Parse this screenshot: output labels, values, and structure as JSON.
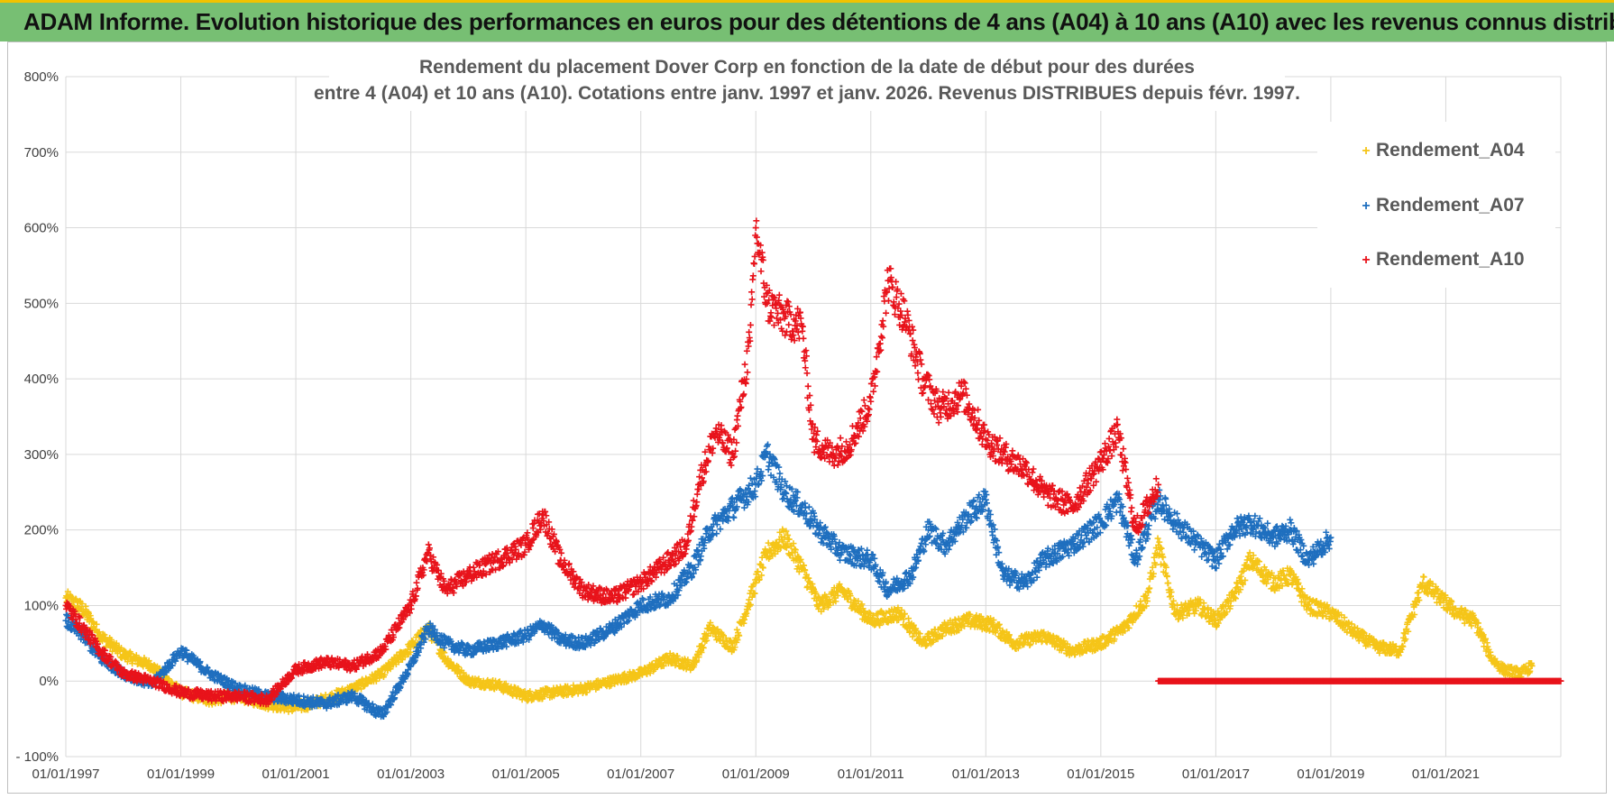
{
  "banner": {
    "title": "ADAM Informe. Evolution historique des performances en euros pour des détentions de 4 ans (A04) à 10 ans (A10) avec les revenus connus distribués"
  },
  "chart_data": {
    "type": "scatter",
    "title_lines": [
      "Rendement du placement Dover Corp en fonction de la date de début pour des durées",
      "entre 4 (A04) et 10 ans (A10). Cotations entre janv. 1997 et janv. 2026. Revenus DISTRIBUES depuis févr. 1997."
    ],
    "xlabel": "",
    "ylabel": "",
    "xlim": [
      1997.0,
      2023.0
    ],
    "ylim": [
      -100,
      800
    ],
    "y_ticks": [
      -100,
      0,
      100,
      200,
      300,
      400,
      500,
      600,
      700,
      800
    ],
    "y_tick_labels": [
      "- 100%",
      "0%",
      "100%",
      "200%",
      "300%",
      "400%",
      "500%",
      "600%",
      "700%",
      "800%"
    ],
    "x_ticks": [
      1997,
      1999,
      2001,
      2003,
      2005,
      2007,
      2009,
      2011,
      2013,
      2015,
      2017,
      2019,
      2021
    ],
    "x_tick_labels": [
      "01/01/1997",
      "01/01/1999",
      "01/01/2001",
      "01/01/2003",
      "01/01/2005",
      "01/01/2007",
      "01/01/2009",
      "01/01/2011",
      "01/01/2013",
      "01/01/2015",
      "01/01/2017",
      "01/01/2019",
      "01/01/2021"
    ],
    "grid": true,
    "legend_position": "top-right",
    "marker": "+",
    "series": [
      {
        "name": "Rendement_A04",
        "color": "#f5c518",
        "x": [
          1997.0,
          1997.3,
          1997.6,
          1998.0,
          1998.5,
          1999.0,
          1999.5,
          2000.0,
          2000.5,
          2001.0,
          2001.5,
          2002.0,
          2002.5,
          2003.0,
          2003.3,
          2003.6,
          2004.0,
          2004.5,
          2005.0,
          2005.5,
          2006.0,
          2006.5,
          2007.0,
          2007.5,
          2007.9,
          2008.2,
          2008.6,
          2009.0,
          2009.2,
          2009.5,
          2009.8,
          2010.1,
          2010.5,
          2011.0,
          2011.5,
          2011.9,
          2012.3,
          2012.7,
          2013.1,
          2013.5,
          2014.0,
          2014.5,
          2015.0,
          2015.4,
          2015.8,
          2016.0,
          2016.3,
          2016.7,
          2017.0,
          2017.3,
          2017.6,
          2018.0,
          2018.3,
          2018.6,
          2019.0,
          2019.4,
          2019.8,
          2020.2,
          2020.6,
          2020.9,
          2021.2,
          2021.5,
          2021.8,
          2022.0,
          2022.3,
          2022.5
        ],
        "values": [
          110,
          95,
          60,
          35,
          20,
          -15,
          -25,
          -20,
          -30,
          -35,
          -25,
          -10,
          10,
          45,
          70,
          30,
          0,
          -5,
          -20,
          -15,
          -10,
          0,
          10,
          30,
          20,
          70,
          45,
          130,
          170,
          190,
          150,
          100,
          120,
          80,
          90,
          50,
          70,
          80,
          75,
          50,
          60,
          40,
          50,
          70,
          110,
          180,
          90,
          100,
          80,
          110,
          160,
          130,
          140,
          100,
          90,
          65,
          45,
          40,
          130,
          110,
          90,
          80,
          30,
          15,
          10,
          20
        ]
      },
      {
        "name": "Rendement_A07",
        "color": "#1f6fbf",
        "x": [
          1997.0,
          1997.3,
          1997.6,
          1998.0,
          1998.5,
          1999.0,
          1999.5,
          2000.0,
          2000.5,
          2001.0,
          2001.5,
          2002.0,
          2002.5,
          2003.0,
          2003.3,
          2003.6,
          2004.0,
          2004.5,
          2005.0,
          2005.3,
          2005.6,
          2006.0,
          2006.5,
          2007.0,
          2007.5,
          2007.9,
          2008.2,
          2008.6,
          2009.0,
          2009.2,
          2009.5,
          2009.8,
          2010.1,
          2010.5,
          2011.0,
          2011.3,
          2011.7,
          2012.0,
          2012.3,
          2012.7,
          2013.0,
          2013.3,
          2013.7,
          2014.0,
          2014.5,
          2015.0,
          2015.3,
          2015.6,
          2016.0,
          2016.3,
          2016.7,
          2017.0,
          2017.3,
          2017.6,
          2018.0,
          2018.3,
          2018.6,
          2019.0
        ],
        "values": [
          80,
          60,
          30,
          10,
          -5,
          40,
          10,
          -10,
          -20,
          -25,
          -30,
          -20,
          -45,
          20,
          70,
          50,
          40,
          50,
          60,
          75,
          55,
          50,
          70,
          100,
          110,
          150,
          200,
          230,
          260,
          300,
          250,
          230,
          200,
          170,
          160,
          120,
          140,
          200,
          180,
          220,
          240,
          140,
          130,
          160,
          180,
          210,
          240,
          160,
          240,
          210,
          180,
          160,
          200,
          210,
          190,
          200,
          160,
          190
        ]
      },
      {
        "name": "Rendement_A10",
        "color": "#e8131b",
        "x": [
          1997.0,
          1997.3,
          1997.6,
          1998.0,
          1998.5,
          1999.0,
          1999.5,
          2000.0,
          2000.5,
          2001.0,
          2001.5,
          2002.0,
          2002.5,
          2003.0,
          2003.3,
          2003.6,
          2004.0,
          2004.5,
          2005.0,
          2005.3,
          2005.6,
          2006.0,
          2006.5,
          2007.0,
          2007.5,
          2007.8,
          2008.0,
          2008.3,
          2008.6,
          2008.9,
          2009.0,
          2009.2,
          2009.5,
          2009.8,
          2010.0,
          2010.3,
          2010.6,
          2011.0,
          2011.3,
          2011.6,
          2011.9,
          2012.2,
          2012.6,
          2013.0,
          2013.3,
          2013.7,
          2014.0,
          2014.5,
          2015.0,
          2015.3,
          2015.6,
          2016.0
        ],
        "values": [
          100,
          70,
          40,
          10,
          0,
          -15,
          -20,
          -20,
          -25,
          15,
          25,
          20,
          40,
          100,
          170,
          120,
          140,
          160,
          180,
          220,
          160,
          120,
          110,
          130,
          160,
          180,
          260,
          330,
          300,
          450,
          600,
          500,
          480,
          470,
          320,
          300,
          310,
          370,
          530,
          480,
          400,
          360,
          380,
          320,
          300,
          280,
          250,
          230,
          290,
          330,
          200,
          260
        ]
      },
      {
        "name": "Rendement_A10_zero",
        "color": "#e8131b",
        "x": [
          2016.0,
          2016.5,
          2017.0,
          2017.5,
          2018.0,
          2018.5,
          2019.0,
          2019.5,
          2020.0,
          2020.5,
          2021.0,
          2021.5,
          2022.0,
          2022.5,
          2023.0
        ],
        "values": [
          0,
          0,
          0,
          0,
          0,
          0,
          0,
          0,
          0,
          0,
          0,
          0,
          0,
          0,
          0
        ]
      }
    ],
    "legend": [
      {
        "label": "Rendement_A04",
        "color": "#f5c518"
      },
      {
        "label": "Rendement_A07",
        "color": "#1f6fbf"
      },
      {
        "label": "Rendement_A10",
        "color": "#e8131b"
      }
    ]
  }
}
